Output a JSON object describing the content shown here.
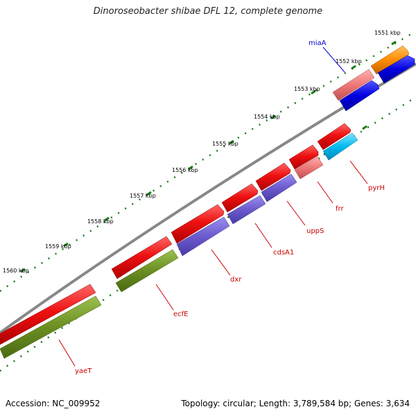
{
  "title": "Dinoroseobacter shibae DFL 12, complete genome",
  "footer": {
    "accession": "Accession: NC_009952",
    "summary": "Topology: circular; Length: 3,789,584 bp; Genes: 3,634"
  },
  "ticks": [
    {
      "label": "1551 kbp"
    },
    {
      "label": "1552 kbp"
    },
    {
      "label": "1553 kbp"
    },
    {
      "label": "1554 kbp"
    },
    {
      "label": "1555 kbp"
    },
    {
      "label": "1556 kbp"
    },
    {
      "label": "1557 kbp"
    },
    {
      "label": "1558 kbp"
    },
    {
      "label": "1559 kbp"
    },
    {
      "label": "1560 kbp"
    }
  ],
  "labels": [
    {
      "name": "miaA",
      "color": "#0000cc"
    },
    {
      "name": "pyrH",
      "color": "#cc0000"
    },
    {
      "name": "frr",
      "color": "#cc0000"
    },
    {
      "name": "uppS",
      "color": "#cc0000"
    },
    {
      "name": "cdsA1",
      "color": "#cc0000"
    },
    {
      "name": "dxr",
      "color": "#cc0000"
    },
    {
      "name": "ecfE",
      "color": "#cc0000"
    },
    {
      "name": "yaeT",
      "color": "#cc0000"
    }
  ],
  "colors": {
    "backbone": "#888888",
    "tick": "#1a7a1a",
    "cds_red": "#ee1111",
    "cds_orange": "#ff8c00",
    "cds_blue": "#0000e0",
    "cds_pink": "#ee7777",
    "cds_cyan": "#00bbee",
    "cds_purple": "#6a5acd",
    "cds_olive": "#6b8e23"
  }
}
